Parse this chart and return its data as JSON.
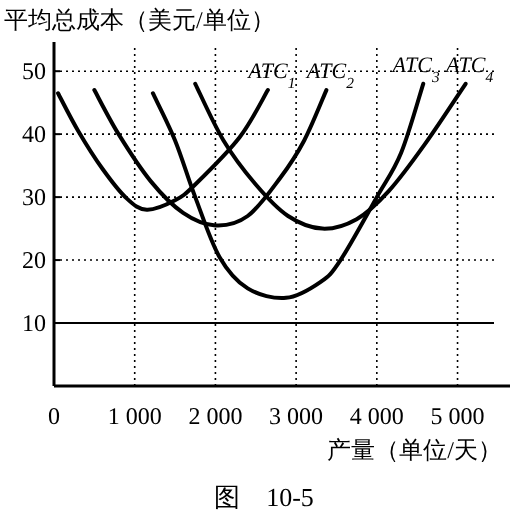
{
  "chart_data": {
    "type": "line",
    "ylabel": "平均总成本（美元/单位）",
    "xlabel": "产量（单位/天）",
    "annotations": [
      "图　10-5"
    ],
    "xlim": [
      0,
      5650
    ],
    "ylim": [
      0,
      54
    ],
    "xticks": [
      0,
      {
        "value": 1000,
        "label": "1 000"
      },
      {
        "value": 2000,
        "label": "2 000"
      },
      {
        "value": 3000,
        "label": "3 000"
      },
      {
        "value": 4000,
        "label": "4 000"
      },
      {
        "value": 5000,
        "label": "5 000"
      }
    ],
    "yticks": [
      10,
      20,
      30,
      40,
      50
    ],
    "grid": true,
    "ref_lines": [
      {
        "axis": "y",
        "value": 10,
        "color": "#000000"
      }
    ],
    "series": [
      {
        "name": "ATC$_{1}$",
        "color": "#000000",
        "x": [
          50,
          300,
          600,
          900,
          1150,
          1500,
          1750,
          2300,
          2650
        ],
        "values": [
          46.5,
          40.5,
          34.5,
          29.8,
          28,
          29.5,
          32,
          39.5,
          47
        ]
      },
      {
        "name": "ATC$_{2}$",
        "color": "#000000",
        "x": [
          500,
          800,
          1200,
          1600,
          2000,
          2400,
          2800,
          3100,
          3375
        ],
        "values": [
          47,
          40,
          32.5,
          27.5,
          25.5,
          27,
          33,
          39,
          47
        ]
      },
      {
        "name": "ATC$_{3}$",
        "color": "#000000",
        "x": [
          1225,
          1500,
          1750,
          2050,
          2400,
          2875,
          3300,
          3550,
          4000,
          4300,
          4575
        ],
        "values": [
          46.5,
          39,
          30,
          20.5,
          15.5,
          14,
          16.5,
          20,
          30,
          37,
          48
        ]
      },
      {
        "name": "ATC$_{4}$",
        "color": "#000000",
        "x": [
          1750,
          2100,
          2500,
          2900,
          3325,
          3750,
          4150,
          4600,
          5100
        ],
        "values": [
          48,
          39,
          32,
          27,
          25,
          26.5,
          31,
          38.5,
          48
        ]
      }
    ]
  }
}
